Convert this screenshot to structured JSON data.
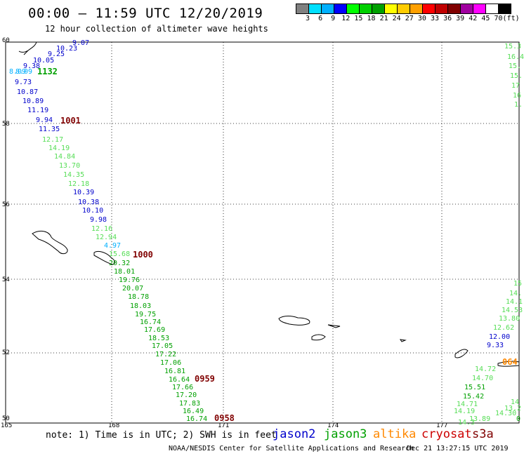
{
  "header": {
    "title": "00:00 – 11:59 UTC 12/20/2019",
    "subtitle": "12 hour collection of altimeter wave heights"
  },
  "colorbar": {
    "colors": [
      "#808080",
      "#00e0ff",
      "#00b0ff",
      "#0000ff",
      "#00ff00",
      "#00d000",
      "#00a000",
      "#ffff00",
      "#ffcc00",
      "#ffa000",
      "#ff0000",
      "#c00000",
      "#800000",
      "#a000a0",
      "#ff00ff",
      "#ffffff",
      "#000000"
    ],
    "labels": [
      "3",
      "6",
      "9",
      "12",
      "15",
      "18",
      "21",
      "24",
      "27",
      "30",
      "33",
      "36",
      "39",
      "42",
      "45",
      "70",
      "(ft)"
    ]
  },
  "axes": {
    "y_labels": [
      "60",
      "58",
      "56",
      "54",
      "52",
      "50"
    ],
    "x_labels": [
      "165",
      "168",
      "171",
      "174",
      "177"
    ]
  },
  "satellite_colors": {
    "jason2": "#0000cc",
    "jason3": "#00a000",
    "jason3_light": "#55dd55",
    "altika": "#ff8800",
    "cryosat": "#cc0000",
    "s3a": "#800000",
    "cyan": "#00b0ff"
  },
  "measurements": [
    {
      "t": "9.07",
      "c": "jason2"
    },
    {
      "t": "10.23",
      "c": "jason2"
    },
    {
      "t": "9.25",
      "c": "jason2"
    },
    {
      "t": "10.05",
      "c": "jason2"
    },
    {
      "t": "9.38",
      "c": "jason2"
    },
    {
      "t": "8.09",
      "c": "cyan"
    },
    {
      "t": "8.09",
      "c": "cyan"
    },
    {
      "t": "9.73",
      "c": "jason2"
    },
    {
      "t": "10.87",
      "c": "jason2"
    },
    {
      "t": "10.89",
      "c": "jason2"
    },
    {
      "t": "11.19",
      "c": "jason2"
    },
    {
      "t": "9.94",
      "c": "jason2"
    },
    {
      "t": "11.35",
      "c": "jason2"
    },
    {
      "t": "12.17",
      "c": "jason3_light"
    },
    {
      "t": "14.19",
      "c": "jason3_light"
    },
    {
      "t": "14.84",
      "c": "jason3_light"
    },
    {
      "t": "13.70",
      "c": "jason3_light"
    },
    {
      "t": "14.35",
      "c": "jason3_light"
    },
    {
      "t": "12.18",
      "c": "jason3_light"
    },
    {
      "t": "10.39",
      "c": "jason2"
    },
    {
      "t": "10.38",
      "c": "jason2"
    },
    {
      "t": "10.10",
      "c": "jason2"
    },
    {
      "t": "9.98",
      "c": "jason2"
    },
    {
      "t": "12.16",
      "c": "jason3_light"
    },
    {
      "t": "12.94",
      "c": "jason3_light"
    },
    {
      "t": "4.97",
      "c": "cyan"
    },
    {
      "t": "15.68",
      "c": "jason3_light"
    },
    {
      "t": "20.32",
      "c": "jason3"
    },
    {
      "t": "18.01",
      "c": "jason3"
    },
    {
      "t": "19.76",
      "c": "jason3"
    },
    {
      "t": "20.07",
      "c": "jason3"
    },
    {
      "t": "18.78",
      "c": "jason3"
    },
    {
      "t": "18.03",
      "c": "jason3"
    },
    {
      "t": "19.75",
      "c": "jason3"
    },
    {
      "t": "16.74",
      "c": "jason3"
    },
    {
      "t": "17.69",
      "c": "jason3"
    },
    {
      "t": "18.53",
      "c": "jason3"
    },
    {
      "t": "17.05",
      "c": "jason3"
    },
    {
      "t": "17.22",
      "c": "jason3"
    },
    {
      "t": "17.06",
      "c": "jason3"
    },
    {
      "t": "16.81",
      "c": "jason3"
    },
    {
      "t": "16.64",
      "c": "jason3"
    },
    {
      "t": "17.66",
      "c": "jason3"
    },
    {
      "t": "17.20",
      "c": "jason3"
    },
    {
      "t": "17.83",
      "c": "jason3"
    },
    {
      "t": "16.49",
      "c": "jason3"
    },
    {
      "t": "16.74",
      "c": "jason3"
    },
    {
      "t": "15.3",
      "c": "jason3_light"
    },
    {
      "t": "16.4",
      "c": "jason3_light"
    },
    {
      "t": "15.",
      "c": "jason3_light"
    },
    {
      "t": "15.",
      "c": "jason3_light"
    },
    {
      "t": "17",
      "c": "jason3_light"
    },
    {
      "t": "16",
      "c": "jason3_light"
    },
    {
      "t": "1.",
      "c": "jason3_light"
    },
    {
      "t": "15",
      "c": "jason3_light"
    },
    {
      "t": "14.",
      "c": "jason3_light"
    },
    {
      "t": "14.1",
      "c": "jason3_light"
    },
    {
      "t": "14.53",
      "c": "jason3_light"
    },
    {
      "t": "13.80",
      "c": "jason3_light"
    },
    {
      "t": "12.62",
      "c": "jason3_light"
    },
    {
      "t": "12.00",
      "c": "jason2"
    },
    {
      "t": "9.33",
      "c": "jason2"
    },
    {
      "t": "14.72",
      "c": "jason3_light"
    },
    {
      "t": "14.70",
      "c": "jason3_light"
    },
    {
      "t": "15.51",
      "c": "jason3"
    },
    {
      "t": "15.42",
      "c": "jason3"
    },
    {
      "t": "14.71",
      "c": "jason3_light"
    },
    {
      "t": "14.19",
      "c": "jason3_light"
    },
    {
      "t": "14.3",
      "c": "jason3_light"
    },
    {
      "t": "14",
      "c": "jason3_light"
    },
    {
      "t": "13.2",
      "c": "jason3_light"
    },
    {
      "t": "14.30",
      "c": "jason3_light"
    },
    {
      "t": "13.89",
      "c": "jason3_light"
    },
    {
      "t": "0",
      "c": "jason3"
    }
  ],
  "pass_times": [
    {
      "t": "1132",
      "c": "jason3"
    },
    {
      "t": "1001",
      "c": "s3a"
    },
    {
      "t": "1000",
      "c": "s3a"
    },
    {
      "t": "0959",
      "c": "s3a"
    },
    {
      "t": "0958",
      "c": "s3a"
    },
    {
      "t": "064",
      "c": "altika"
    }
  ],
  "footer": {
    "note": "note: 1) Time is in UTC; 2) SWH is in feet",
    "satellites": [
      {
        "name": "jason2",
        "c": "jason2"
      },
      {
        "name": "jason3",
        "c": "jason3"
      },
      {
        "name": "altika",
        "c": "altika"
      },
      {
        "name": "cryosat",
        "c": "cryosat"
      },
      {
        "name": "s3a",
        "c": "s3a"
      }
    ],
    "credit": "NOAA/NESDIS Center for Satellite Applications and Research",
    "timestamp": "Dec 21 13:27:15 UTC 2019"
  }
}
